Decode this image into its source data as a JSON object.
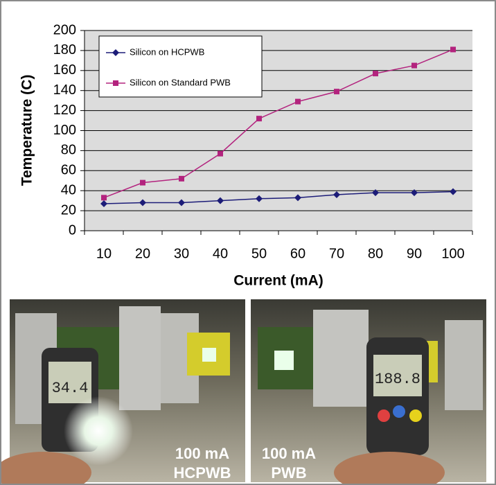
{
  "chart_data": {
    "type": "line",
    "ylabel": "Temperature (C)",
    "xlabel": "Current (mA)",
    "categories": [
      10,
      20,
      30,
      40,
      50,
      60,
      70,
      80,
      90,
      100
    ],
    "series": [
      {
        "name": "Silicon on HCPWB",
        "color": "#1c1c78",
        "marker": "diamond",
        "values": [
          27,
          28,
          28,
          30,
          32,
          33,
          36,
          38,
          38,
          39
        ]
      },
      {
        "name": "Silicon on Standard PWB",
        "color": "#b3237e",
        "marker": "square",
        "values": [
          33,
          48,
          52,
          77,
          112,
          129,
          139,
          157,
          165,
          181
        ]
      }
    ],
    "ylim": [
      0,
      200
    ],
    "yticks": [
      0,
      20,
      40,
      60,
      80,
      100,
      120,
      140,
      160,
      180,
      200
    ],
    "grid": true,
    "legend": "upper left"
  },
  "photos": [
    {
      "meter_reading": "34.4",
      "label_lines": [
        "100 mA",
        "HCPWB"
      ]
    },
    {
      "meter_reading": "188.8",
      "label_lines": [
        "100 mA",
        "PWB"
      ]
    }
  ]
}
